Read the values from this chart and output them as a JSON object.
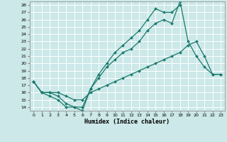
{
  "title": "",
  "xlabel": "Humidex (Indice chaleur)",
  "bg_color": "#cce8e8",
  "grid_color": "#ffffff",
  "line_color": "#1a7a6e",
  "xlim": [
    -0.5,
    23.5
  ],
  "ylim": [
    13.5,
    28.5
  ],
  "xticks": [
    0,
    1,
    2,
    3,
    4,
    5,
    6,
    7,
    8,
    9,
    10,
    11,
    12,
    13,
    14,
    15,
    16,
    17,
    18,
    19,
    20,
    21,
    22,
    23
  ],
  "yticks": [
    14,
    15,
    16,
    17,
    18,
    19,
    20,
    21,
    22,
    23,
    24,
    25,
    26,
    27,
    28
  ],
  "series": [
    {
      "x": [
        0,
        1,
        2,
        3,
        4,
        5,
        6,
        7,
        8,
        9,
        10,
        11,
        12,
        13,
        14,
        15,
        16,
        17,
        18,
        19,
        20,
        21,
        22,
        23
      ],
      "y": [
        17.5,
        16.0,
        16.0,
        15.5,
        14.5,
        14.0,
        14.0,
        16.5,
        18.0,
        19.5,
        20.5,
        21.5,
        22.0,
        23.0,
        24.5,
        25.5,
        26.0,
        25.5,
        28.5,
        23.0,
        21.0,
        19.5,
        18.5,
        18.5
      ]
    },
    {
      "x": [
        0,
        1,
        2,
        3,
        4,
        5,
        6,
        7,
        8,
        9,
        10,
        11,
        12,
        13,
        14,
        15,
        16,
        17,
        18
      ],
      "y": [
        17.5,
        16.0,
        15.5,
        15.0,
        14.0,
        14.0,
        13.5,
        16.5,
        18.5,
        20.0,
        21.5,
        22.5,
        23.5,
        24.5,
        26.0,
        27.5,
        27.0,
        27.0,
        28.0
      ]
    },
    {
      "x": [
        0,
        1,
        2,
        3,
        4,
        5,
        6,
        7,
        8,
        9,
        10,
        11,
        12,
        13,
        14,
        15,
        16,
        17,
        18,
        19,
        20,
        21,
        22,
        23
      ],
      "y": [
        17.5,
        16.0,
        16.0,
        16.0,
        15.5,
        15.0,
        15.0,
        16.0,
        16.5,
        17.0,
        17.5,
        18.0,
        18.5,
        19.0,
        19.5,
        20.0,
        20.5,
        21.0,
        21.5,
        22.5,
        23.0,
        21.0,
        18.5,
        18.5
      ]
    }
  ]
}
